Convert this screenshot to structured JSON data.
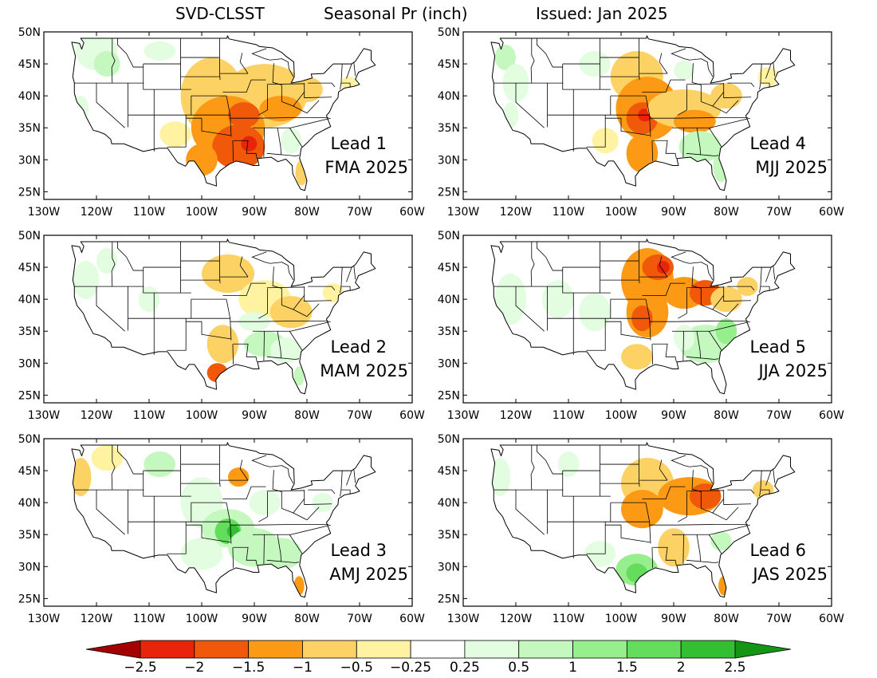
{
  "title": {
    "model": "SVD-CLSST",
    "field": "Seasonal Pr (inch)",
    "issued": "Issued: Jan 2025"
  },
  "axes": {
    "x_ticks": [
      "130W",
      "120W",
      "110W",
      "100W",
      "90W",
      "80W",
      "70W",
      "60W"
    ],
    "y_ticks": [
      "50N",
      "45N",
      "40N",
      "35N",
      "30N",
      "25N"
    ]
  },
  "panels": [
    {
      "lead": "Lead 1",
      "season": "FMA 2025",
      "pattern": "dry-south-central"
    },
    {
      "lead": "Lead 4",
      "season": "MJJ 2025",
      "pattern": "dry-central-plains"
    },
    {
      "lead": "Lead 2",
      "season": "MAM 2025",
      "pattern": "mixed-weak"
    },
    {
      "lead": "Lead 5",
      "season": "JJA 2025",
      "pattern": "dry-upper-midwest"
    },
    {
      "lead": "Lead 3",
      "season": "AMJ 2025",
      "pattern": "wet-south-central"
    },
    {
      "lead": "Lead 6",
      "season": "JAS 2025",
      "pattern": "wet-texas-dry-midwest"
    }
  ],
  "colorbar": {
    "labels": [
      "−2.5",
      "−2",
      "−1.5",
      "−1",
      "−0.5",
      "−0.25",
      "0.25",
      "0.5",
      "1",
      "1.5",
      "2",
      "2.5"
    ],
    "colors": [
      "#a50000",
      "#e8240a",
      "#f0580a",
      "#fc9a16",
      "#fcd265",
      "#fff2a0",
      "#ffffff",
      "#e2fde0",
      "#c4f8be",
      "#96ee8c",
      "#64dc5c",
      "#32c032",
      "#149614"
    ]
  }
}
